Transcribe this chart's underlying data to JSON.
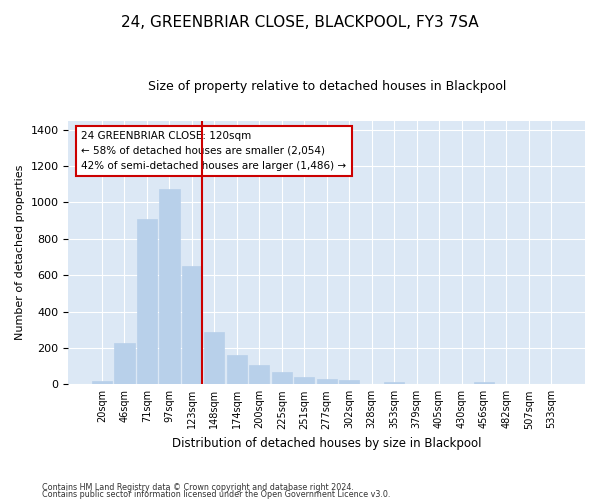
{
  "title": "24, GREENBRIAR CLOSE, BLACKPOOL, FY3 7SA",
  "subtitle": "Size of property relative to detached houses in Blackpool",
  "xlabel": "Distribution of detached houses by size in Blackpool",
  "ylabel": "Number of detached properties",
  "footnote1": "Contains HM Land Registry data © Crown copyright and database right 2024.",
  "footnote2": "Contains public sector information licensed under the Open Government Licence v3.0.",
  "bar_labels": [
    "20sqm",
    "46sqm",
    "71sqm",
    "97sqm",
    "123sqm",
    "148sqm",
    "174sqm",
    "200sqm",
    "225sqm",
    "251sqm",
    "277sqm",
    "302sqm",
    "328sqm",
    "353sqm",
    "379sqm",
    "405sqm",
    "430sqm",
    "456sqm",
    "482sqm",
    "507sqm",
    "533sqm"
  ],
  "bar_values": [
    18,
    225,
    910,
    1075,
    650,
    285,
    160,
    105,
    70,
    38,
    28,
    25,
    0,
    15,
    0,
    0,
    0,
    12,
    0,
    0,
    0
  ],
  "bar_color": "#b8d0ea",
  "bar_edge_color": "#b8d0ea",
  "annotation_text": "24 GREENBRIAR CLOSE: 120sqm\n← 58% of detached houses are smaller (2,054)\n42% of semi-detached houses are larger (1,486) →",
  "annotation_box_color": "#ffffff",
  "annotation_box_edge": "#cc0000",
  "vline_color": "#cc0000",
  "ylim": [
    0,
    1450
  ],
  "background_color": "#ffffff",
  "plot_background": "#dce8f5",
  "grid_color": "#ffffff",
  "title_fontsize": 11,
  "subtitle_fontsize": 9,
  "ylabel_fontsize": 8,
  "xlabel_fontsize": 8.5,
  "tick_fontsize": 7,
  "footnote_fontsize": 5.8
}
